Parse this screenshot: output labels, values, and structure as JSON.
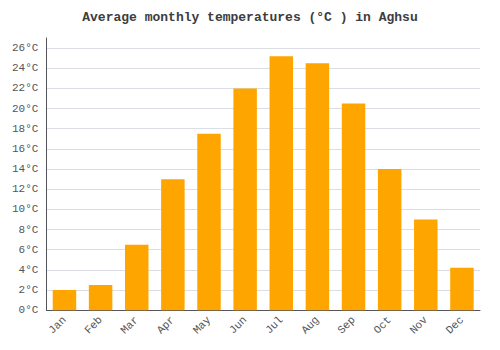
{
  "chart_data": {
    "type": "bar",
    "title": "Average monthly temperatures (°C ) in Aghsu",
    "categories": [
      "Jan",
      "Feb",
      "Mar",
      "Apr",
      "May",
      "Jun",
      "Jul",
      "Aug",
      "Sep",
      "Oct",
      "Nov",
      "Dec"
    ],
    "values": [
      2.0,
      2.5,
      6.5,
      13.0,
      17.5,
      22.0,
      25.2,
      24.5,
      20.5,
      14.0,
      9.0,
      4.2
    ],
    "color": "#FFA500",
    "ylim": [
      0,
      27
    ],
    "yticks": [
      {
        "value": 0,
        "label": "0°C"
      },
      {
        "value": 2,
        "label": "2°C"
      },
      {
        "value": 4,
        "label": "4°C"
      },
      {
        "value": 6,
        "label": "6°C"
      },
      {
        "value": 8,
        "label": "8°C"
      },
      {
        "value": 10,
        "label": "10°C"
      },
      {
        "value": 12,
        "label": "12°C"
      },
      {
        "value": 14,
        "label": "14°C"
      },
      {
        "value": 16,
        "label": "16°C"
      },
      {
        "value": 18,
        "label": "18°C"
      },
      {
        "value": 20,
        "label": "20°C"
      },
      {
        "value": 22,
        "label": "22°C"
      },
      {
        "value": 24,
        "label": "24°C"
      },
      {
        "value": 26,
        "label": "26°C"
      }
    ],
    "grid": true
  }
}
